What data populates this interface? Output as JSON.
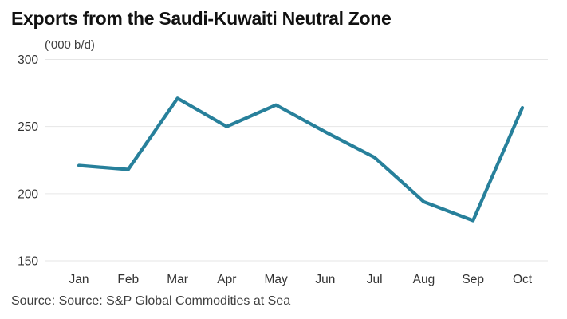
{
  "title": "Exports from the Saudi-Kuwaiti Neutral Zone",
  "source": "Source: Source: S&P Global Commodities at Sea",
  "chart_data": {
    "type": "line",
    "title": "Exports from the Saudi-Kuwaiti Neutral Zone",
    "unit_label": "('000 b/d)",
    "xlabel": "",
    "ylabel": "('000 b/d)",
    "categories": [
      "Jan",
      "Feb",
      "Mar",
      "Apr",
      "May",
      "Jun",
      "Jul",
      "Aug",
      "Sep",
      "Oct"
    ],
    "series": [
      {
        "name": "Exports from the Saudi-Kuwaiti Neutral Zone",
        "values": [
          221,
          218,
          271,
          250,
          266,
          246,
          227,
          194,
          180,
          264
        ]
      }
    ],
    "yticks": [
      300,
      250,
      200,
      150
    ],
    "ylim": [
      150,
      300
    ],
    "grid": true,
    "legend": false,
    "colors": {
      "line": "#27809B",
      "gridline": "#E6E6E6",
      "tick_label": "#333333",
      "title": "#111111",
      "source_text": "#3F3F3F"
    }
  }
}
